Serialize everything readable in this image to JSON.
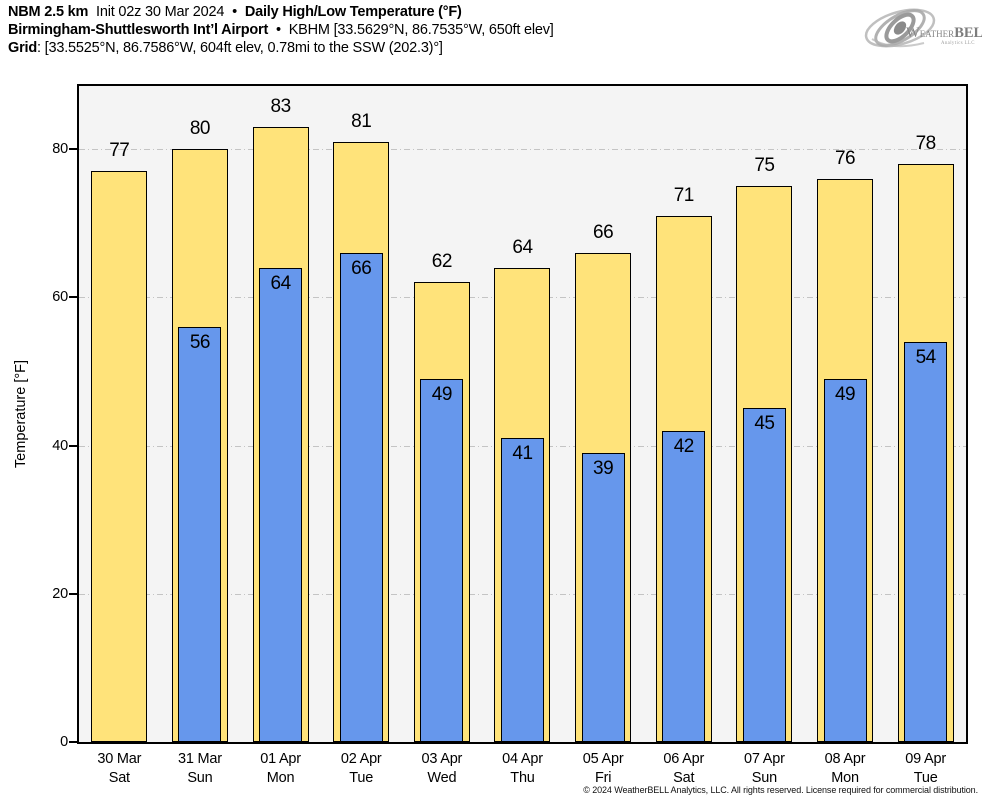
{
  "header": {
    "model": "NBM 2.5 km",
    "init": "Init 02z 30 Mar 2024",
    "sep": "•",
    "product": "Daily High/Low Temperature (°F)",
    "station_name": "Birmingham-Shuttlesworth Int’l Airport",
    "station_meta": "KBHM [33.5629°N, 86.7535°W, 650ft elev]",
    "grid_label": "Grid",
    "grid_info": ": [33.5525°N, 86.7586°W, 604ft elev, 0.78mi to the SSW (202.3)°]"
  },
  "logo": {
    "brand_w": "W",
    "brand_eather": "EATHER",
    "brand_bell": "BELL",
    "subtext": "Analytics LLC"
  },
  "chart_data": {
    "type": "bar",
    "title": "Daily High/Low Temperature (°F)",
    "ylabel": "Temperature [°F]",
    "yticks": [
      0,
      20,
      40,
      60,
      80
    ],
    "ylim": [
      0,
      88.5
    ],
    "grid": "horizontal dash-dot lines at 20/40/60/80, drawn behind bars",
    "legend_position": "none (values labeled directly on bars)",
    "categories_date": [
      "30 Mar",
      "31 Mar",
      "01 Apr",
      "02 Apr",
      "03 Apr",
      "04 Apr",
      "05 Apr",
      "06 Apr",
      "07 Apr",
      "08 Apr",
      "09 Apr"
    ],
    "categories_day": [
      "Sat",
      "Sun",
      "Mon",
      "Tue",
      "Wed",
      "Thu",
      "Fri",
      "Sat",
      "Sun",
      "Mon",
      "Tue"
    ],
    "series": [
      {
        "name": "Daily High",
        "color": "#FFE37A",
        "values": [
          77,
          80,
          83,
          81,
          62,
          64,
          66,
          71,
          75,
          76,
          78
        ]
      },
      {
        "name": "Daily Low",
        "color": "#6697EC",
        "values": [
          null,
          56,
          64,
          66,
          49,
          41,
          39,
          42,
          45,
          49,
          54
        ]
      }
    ]
  },
  "colors": {
    "high_bar": "#FFE37A",
    "low_bar": "#6697EC",
    "plot_bg": "#F4F4F4",
    "gridline": "#C4C4C4",
    "frame": "#000000"
  },
  "footer": {
    "copyright": "© 2024 WeatherBELL Analytics, LLC. All rights reserved. License required for commercial distribution."
  }
}
